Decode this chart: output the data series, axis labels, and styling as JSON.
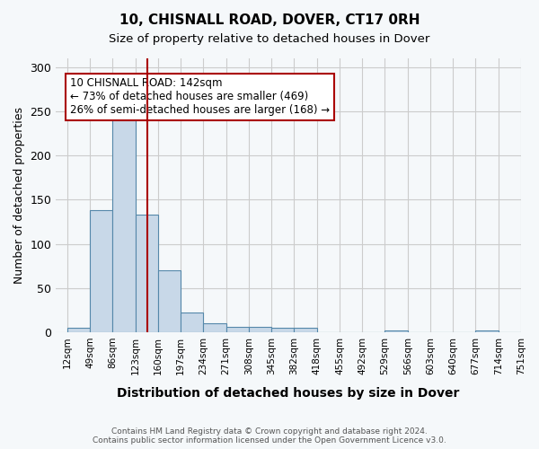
{
  "title1": "10, CHISNALL ROAD, DOVER, CT17 0RH",
  "title2": "Size of property relative to detached houses in Dover",
  "xlabel": "Distribution of detached houses by size in Dover",
  "ylabel": "Number of detached properties",
  "footer1": "Contains HM Land Registry data © Crown copyright and database right 2024.",
  "footer2": "Contains public sector information licensed under the Open Government Licence v3.0.",
  "bin_labels": [
    "12sqm",
    "49sqm",
    "86sqm",
    "123sqm",
    "160sqm",
    "197sqm",
    "234sqm",
    "271sqm",
    "308sqm",
    "345sqm",
    "382sqm",
    "418sqm",
    "455sqm",
    "492sqm",
    "529sqm",
    "566sqm",
    "603sqm",
    "640sqm",
    "677sqm",
    "714sqm",
    "751sqm"
  ],
  "bar_values": [
    5,
    138,
    253,
    133,
    70,
    22,
    10,
    6,
    6,
    5,
    5,
    0,
    0,
    0,
    2,
    0,
    0,
    0,
    2,
    0
  ],
  "bar_color": "#c8d8e8",
  "bar_edge_color": "#5588aa",
  "vline_x": 4.27,
  "vline_color": "#aa0000",
  "annotation_text": "10 CHISNALL ROAD: 142sqm\n← 73% of detached houses are smaller (469)\n26% of semi-detached houses are larger (168) →",
  "annotation_box_color": "#ffffff",
  "annotation_box_edge": "#aa0000",
  "ylim": [
    0,
    310
  ],
  "yticks": [
    0,
    50,
    100,
    150,
    200,
    250,
    300
  ],
  "grid_color": "#cccccc",
  "background_color": "#f5f8fa"
}
